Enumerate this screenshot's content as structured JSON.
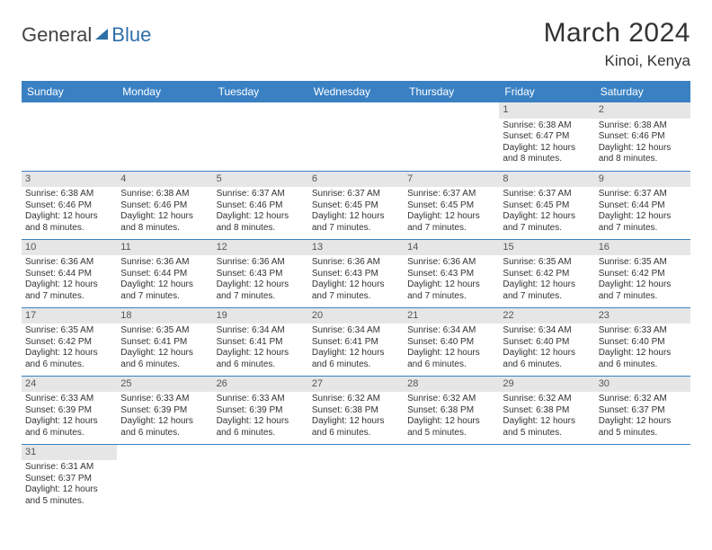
{
  "logo": {
    "part1": "General",
    "part2": "Blue"
  },
  "title": "March 2024",
  "location": "Kinoi, Kenya",
  "colors": {
    "header_bg": "#3a81c4",
    "header_text": "#ffffff",
    "daynum_bg": "#e6e6e6",
    "daynum_text": "#555555",
    "cell_border": "#3a81c4",
    "body_text": "#333333",
    "logo_accent": "#2f6fa8"
  },
  "fonts": {
    "title_size": 30,
    "location_size": 17,
    "weekday_size": 12,
    "daynum_size": 11,
    "cell_size": 10
  },
  "weekdays": [
    "Sunday",
    "Monday",
    "Tuesday",
    "Wednesday",
    "Thursday",
    "Friday",
    "Saturday"
  ],
  "cells": [
    {
      "day": "",
      "text": ""
    },
    {
      "day": "",
      "text": ""
    },
    {
      "day": "",
      "text": ""
    },
    {
      "day": "",
      "text": ""
    },
    {
      "day": "",
      "text": ""
    },
    {
      "day": "1",
      "text": "Sunrise: 6:38 AM\nSunset: 6:47 PM\nDaylight: 12 hours and 8 minutes."
    },
    {
      "day": "2",
      "text": "Sunrise: 6:38 AM\nSunset: 6:46 PM\nDaylight: 12 hours and 8 minutes."
    },
    {
      "day": "3",
      "text": "Sunrise: 6:38 AM\nSunset: 6:46 PM\nDaylight: 12 hours and 8 minutes."
    },
    {
      "day": "4",
      "text": "Sunrise: 6:38 AM\nSunset: 6:46 PM\nDaylight: 12 hours and 8 minutes."
    },
    {
      "day": "5",
      "text": "Sunrise: 6:37 AM\nSunset: 6:46 PM\nDaylight: 12 hours and 8 minutes."
    },
    {
      "day": "6",
      "text": "Sunrise: 6:37 AM\nSunset: 6:45 PM\nDaylight: 12 hours and 7 minutes."
    },
    {
      "day": "7",
      "text": "Sunrise: 6:37 AM\nSunset: 6:45 PM\nDaylight: 12 hours and 7 minutes."
    },
    {
      "day": "8",
      "text": "Sunrise: 6:37 AM\nSunset: 6:45 PM\nDaylight: 12 hours and 7 minutes."
    },
    {
      "day": "9",
      "text": "Sunrise: 6:37 AM\nSunset: 6:44 PM\nDaylight: 12 hours and 7 minutes."
    },
    {
      "day": "10",
      "text": "Sunrise: 6:36 AM\nSunset: 6:44 PM\nDaylight: 12 hours and 7 minutes."
    },
    {
      "day": "11",
      "text": "Sunrise: 6:36 AM\nSunset: 6:44 PM\nDaylight: 12 hours and 7 minutes."
    },
    {
      "day": "12",
      "text": "Sunrise: 6:36 AM\nSunset: 6:43 PM\nDaylight: 12 hours and 7 minutes."
    },
    {
      "day": "13",
      "text": "Sunrise: 6:36 AM\nSunset: 6:43 PM\nDaylight: 12 hours and 7 minutes."
    },
    {
      "day": "14",
      "text": "Sunrise: 6:36 AM\nSunset: 6:43 PM\nDaylight: 12 hours and 7 minutes."
    },
    {
      "day": "15",
      "text": "Sunrise: 6:35 AM\nSunset: 6:42 PM\nDaylight: 12 hours and 7 minutes."
    },
    {
      "day": "16",
      "text": "Sunrise: 6:35 AM\nSunset: 6:42 PM\nDaylight: 12 hours and 7 minutes."
    },
    {
      "day": "17",
      "text": "Sunrise: 6:35 AM\nSunset: 6:42 PM\nDaylight: 12 hours and 6 minutes."
    },
    {
      "day": "18",
      "text": "Sunrise: 6:35 AM\nSunset: 6:41 PM\nDaylight: 12 hours and 6 minutes."
    },
    {
      "day": "19",
      "text": "Sunrise: 6:34 AM\nSunset: 6:41 PM\nDaylight: 12 hours and 6 minutes."
    },
    {
      "day": "20",
      "text": "Sunrise: 6:34 AM\nSunset: 6:41 PM\nDaylight: 12 hours and 6 minutes."
    },
    {
      "day": "21",
      "text": "Sunrise: 6:34 AM\nSunset: 6:40 PM\nDaylight: 12 hours and 6 minutes."
    },
    {
      "day": "22",
      "text": "Sunrise: 6:34 AM\nSunset: 6:40 PM\nDaylight: 12 hours and 6 minutes."
    },
    {
      "day": "23",
      "text": "Sunrise: 6:33 AM\nSunset: 6:40 PM\nDaylight: 12 hours and 6 minutes."
    },
    {
      "day": "24",
      "text": "Sunrise: 6:33 AM\nSunset: 6:39 PM\nDaylight: 12 hours and 6 minutes."
    },
    {
      "day": "25",
      "text": "Sunrise: 6:33 AM\nSunset: 6:39 PM\nDaylight: 12 hours and 6 minutes."
    },
    {
      "day": "26",
      "text": "Sunrise: 6:33 AM\nSunset: 6:39 PM\nDaylight: 12 hours and 6 minutes."
    },
    {
      "day": "27",
      "text": "Sunrise: 6:32 AM\nSunset: 6:38 PM\nDaylight: 12 hours and 6 minutes."
    },
    {
      "day": "28",
      "text": "Sunrise: 6:32 AM\nSunset: 6:38 PM\nDaylight: 12 hours and 5 minutes."
    },
    {
      "day": "29",
      "text": "Sunrise: 6:32 AM\nSunset: 6:38 PM\nDaylight: 12 hours and 5 minutes."
    },
    {
      "day": "30",
      "text": "Sunrise: 6:32 AM\nSunset: 6:37 PM\nDaylight: 12 hours and 5 minutes."
    },
    {
      "day": "31",
      "text": "Sunrise: 6:31 AM\nSunset: 6:37 PM\nDaylight: 12 hours and 5 minutes."
    },
    {
      "day": "",
      "text": ""
    },
    {
      "day": "",
      "text": ""
    },
    {
      "day": "",
      "text": ""
    },
    {
      "day": "",
      "text": ""
    },
    {
      "day": "",
      "text": ""
    },
    {
      "day": "",
      "text": ""
    }
  ]
}
